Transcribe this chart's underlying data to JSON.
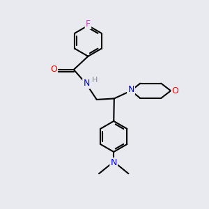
{
  "background_color": "#e8eaf0",
  "bond_color": "#000000",
  "atom_colors": {
    "F": "#cc44cc",
    "O": "#FF0000",
    "N": "#0000FF",
    "H": "#888888"
  },
  "line_width": 1.5,
  "font_size": 9,
  "figsize": [
    3.0,
    3.0
  ],
  "dpi": 100,
  "xlim": [
    0,
    10
  ],
  "ylim": [
    0,
    10
  ]
}
